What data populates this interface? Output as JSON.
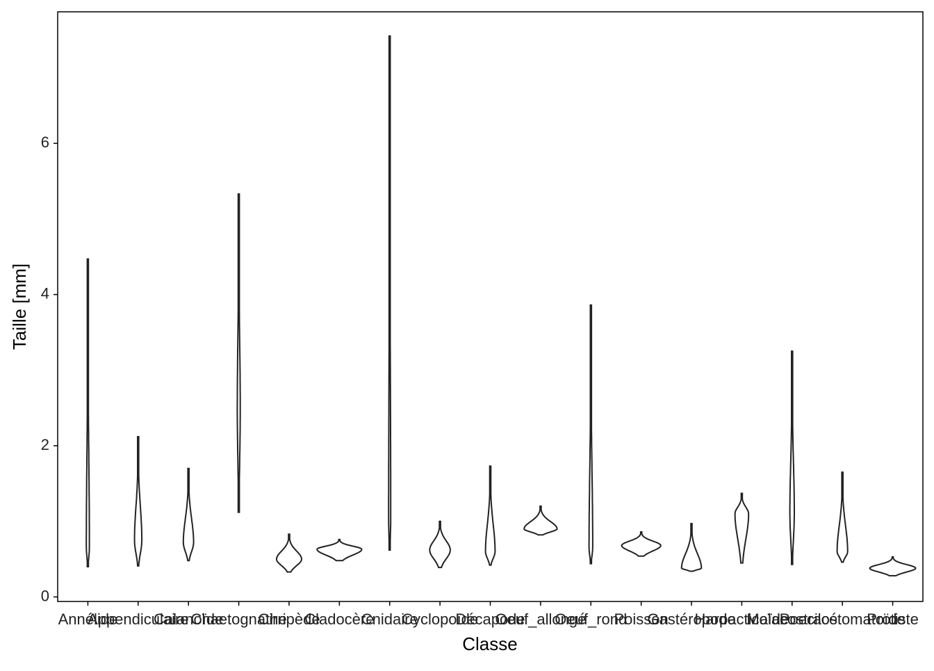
{
  "chart_data": {
    "type": "violin",
    "x_label": "Classe",
    "y_label": "Taille  [mm]",
    "categories": [
      "Annélide",
      "Appendiculaire",
      "Calanoïde",
      "Chaetognathe",
      "Cirripède",
      "Cladocère",
      "Cnidaire",
      "Cyclopoïde",
      "Décapode",
      "Oeuf_allongé",
      "Oeuf_rond",
      "Poisson",
      "Gastéropode",
      "Harpacticoïde",
      "Malacostracé",
      "Poecilostomatoïde",
      "Protiste"
    ],
    "min": [
      0.4,
      0.41,
      0.48,
      1.12,
      0.33,
      0.48,
      0.62,
      0.39,
      0.42,
      0.82,
      0.44,
      0.54,
      0.34,
      0.45,
      0.43,
      0.46,
      0.28
    ],
    "max": [
      4.47,
      2.12,
      1.7,
      5.33,
      0.83,
      0.76,
      7.42,
      1.0,
      1.73,
      1.2,
      3.86,
      0.86,
      0.97,
      1.37,
      3.25,
      1.65,
      0.53
    ],
    "mode": [
      0.65,
      0.75,
      0.72,
      2.5,
      0.5,
      0.63,
      1.0,
      0.62,
      0.6,
      0.9,
      0.65,
      0.68,
      0.38,
      1.1,
      1.1,
      0.6,
      0.38
    ],
    "color": "#222222",
    "ylim": [
      -0.06,
      7.74
    ],
    "yticks": [
      0,
      2,
      4,
      6
    ]
  }
}
